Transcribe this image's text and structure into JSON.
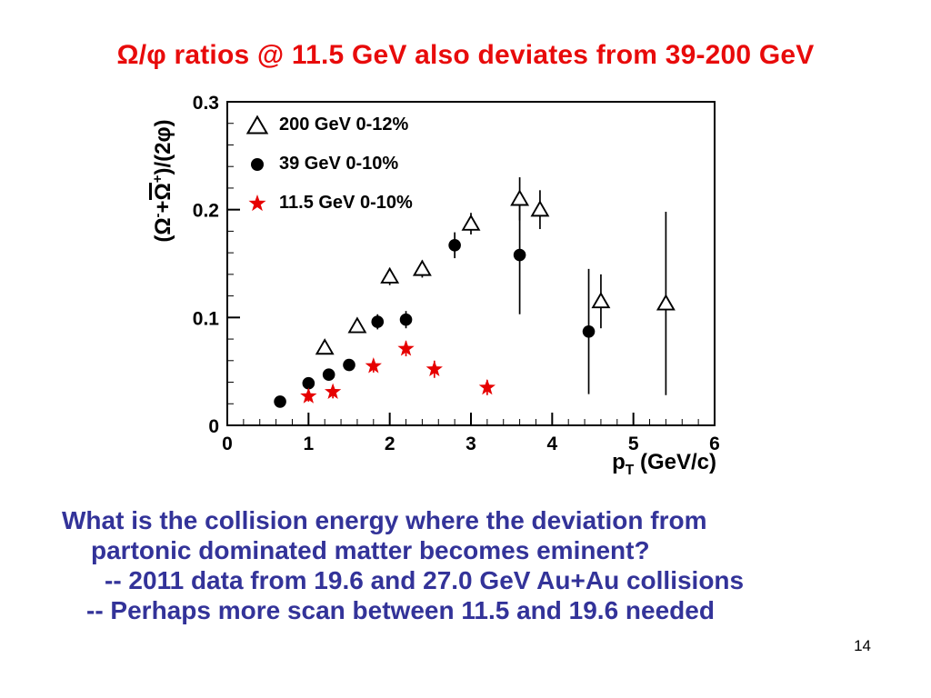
{
  "slide": {
    "title": "Ω/φ ratios @ 11.5 GeV also deviates from 39-200 GeV",
    "page_number": "14",
    "body_lines": [
      "What is the collision energy where the deviation from",
      "partonic dominated matter becomes eminent?",
      "-- 2011 data from 19.6 and 27.0 GeV Au+Au collisions",
      "-- Perhaps more scan between 11.5 and 19.6 needed"
    ],
    "colors": {
      "title_red": "#e80b0b",
      "body_navy": "#333399",
      "star_red": "#e60000"
    }
  },
  "chart_data": {
    "type": "scatter",
    "title": "",
    "xlabel_parts": {
      "base": "p",
      "sub": "T",
      "unit": " (GeV/c)"
    },
    "ylabel_parts": {
      "p1": "(Ω",
      "sup1": "-",
      "p2": "+",
      "p3": "Ω",
      "sup2": "+",
      "p4": ")/(2φ)"
    },
    "xlim": [
      0,
      6
    ],
    "ylim": [
      0,
      0.3
    ],
    "x_ticks": [
      0,
      1,
      2,
      3,
      4,
      5,
      6
    ],
    "y_ticks": [
      0,
      0.1,
      0.2,
      0.3
    ],
    "x_minor_step": 0.2,
    "y_minor_step": 0.02,
    "grid": false,
    "legend_position": "top-left",
    "series": [
      {
        "name": "200 GeV 0-12%",
        "marker": "open-triangle",
        "color": "#000000",
        "points": [
          {
            "x": 1.2,
            "y": 0.072,
            "ey": 0.006
          },
          {
            "x": 1.6,
            "y": 0.092,
            "ey": 0.006
          },
          {
            "x": 2.0,
            "y": 0.138,
            "ey": 0.008
          },
          {
            "x": 2.4,
            "y": 0.145,
            "ey": 0.008
          },
          {
            "x": 3.0,
            "y": 0.187,
            "ey": 0.01
          },
          {
            "x": 3.6,
            "y": 0.21,
            "ey": 0.02
          },
          {
            "x": 3.85,
            "y": 0.2,
            "ey": 0.018
          },
          {
            "x": 4.6,
            "y": 0.115,
            "ey": 0.025
          },
          {
            "x": 5.4,
            "y": 0.113,
            "ey": 0.085
          }
        ]
      },
      {
        "name": "39 GeV 0-10%",
        "marker": "filled-circle",
        "color": "#000000",
        "points": [
          {
            "x": 0.65,
            "y": 0.022,
            "ey": 0.004
          },
          {
            "x": 1.0,
            "y": 0.039,
            "ey": 0.004
          },
          {
            "x": 1.25,
            "y": 0.047,
            "ey": 0.005
          },
          {
            "x": 1.5,
            "y": 0.056,
            "ey": 0.005
          },
          {
            "x": 1.85,
            "y": 0.096,
            "ey": 0.007
          },
          {
            "x": 2.2,
            "y": 0.098,
            "ey": 0.008
          },
          {
            "x": 2.8,
            "y": 0.167,
            "ey": 0.012
          },
          {
            "x": 3.6,
            "y": 0.158,
            "ey": 0.055
          },
          {
            "x": 4.45,
            "y": 0.087,
            "ey": 0.058
          }
        ]
      },
      {
        "name": "11.5 GeV 0-10%",
        "marker": "filled-star",
        "color": "#e60000",
        "points": [
          {
            "x": 1.0,
            "y": 0.027,
            "ey": 0.005
          },
          {
            "x": 1.3,
            "y": 0.031,
            "ey": 0.006
          },
          {
            "x": 1.8,
            "y": 0.055,
            "ey": 0.006
          },
          {
            "x": 2.2,
            "y": 0.071,
            "ey": 0.007
          },
          {
            "x": 2.55,
            "y": 0.052,
            "ey": 0.008
          },
          {
            "x": 3.2,
            "y": 0.035,
            "ey": 0.007
          }
        ]
      }
    ]
  }
}
